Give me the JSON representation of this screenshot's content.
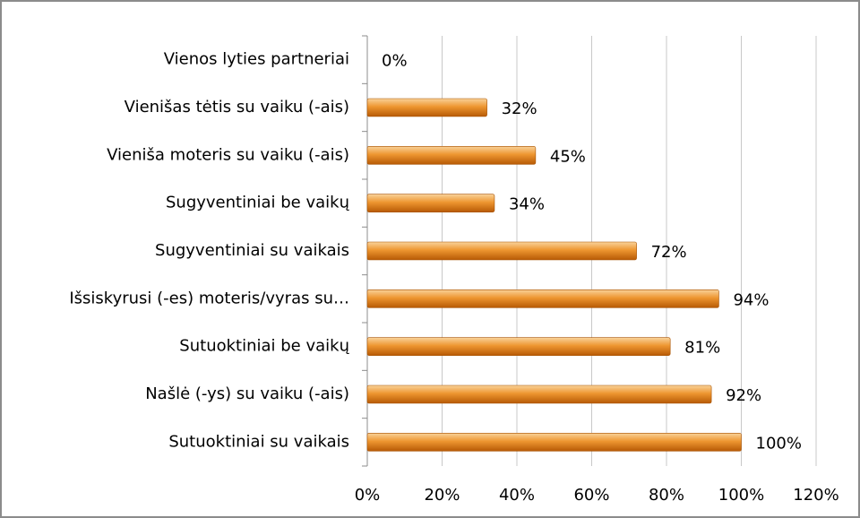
{
  "chart_data": {
    "type": "bar",
    "orientation": "horizontal",
    "categories": [
      "Vienos lyties partneriai",
      "Vienišas tėtis su vaiku (-ais)",
      "Vieniša moteris su vaiku (-ais)",
      "Sugyventiniai be vaikų",
      "Sugyventiniai su vaikais",
      "Išsiskyrusi (-es) moteris/vyras su…",
      "Sutuoktiniai be vaikų",
      "Našlė (-ys) su vaiku (-ais)",
      "Sutuoktiniai su vaikais"
    ],
    "values": [
      0,
      32,
      45,
      34,
      72,
      94,
      81,
      92,
      100
    ],
    "value_labels": [
      "0%",
      "32%",
      "45%",
      "34%",
      "72%",
      "94%",
      "81%",
      "92%",
      "100%"
    ],
    "color": "#e88a1a",
    "xlim": [
      0,
      120
    ],
    "xticks": [
      {
        "value": 0,
        "label": "0%"
      },
      {
        "value": 20,
        "label": "20%"
      },
      {
        "value": 40,
        "label": "40%"
      },
      {
        "value": 60,
        "label": "60%"
      },
      {
        "value": 80,
        "label": "80%"
      },
      {
        "value": 100,
        "label": "100%"
      },
      {
        "value": 120,
        "label": "120%"
      }
    ],
    "grid": true
  }
}
